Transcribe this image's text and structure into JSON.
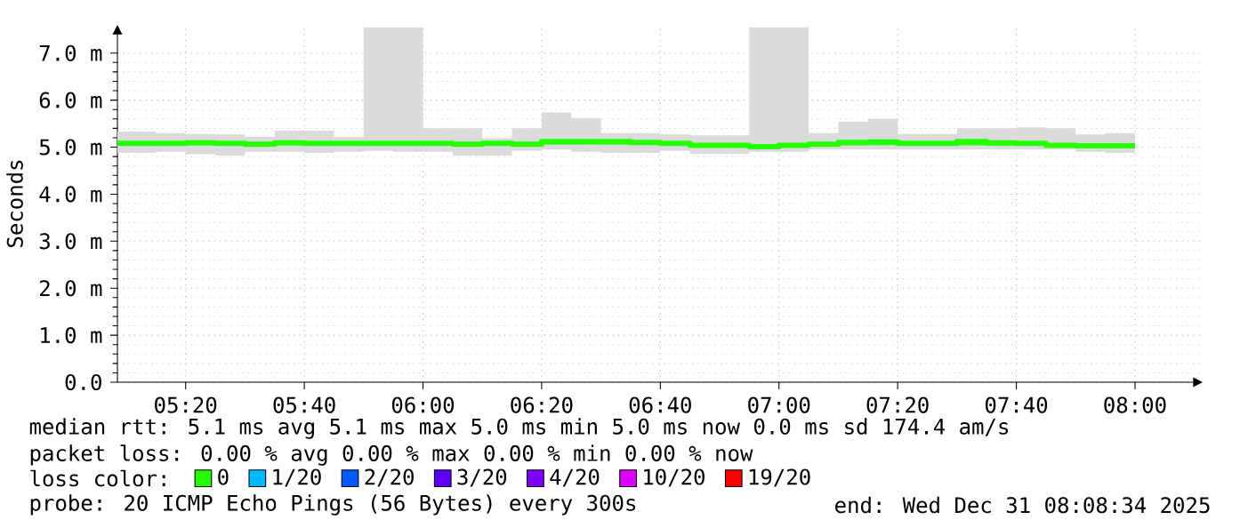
{
  "chart_data": {
    "type": "step",
    "ylabel": "Seconds",
    "x": [
      5.1417,
      5.25,
      5.3333,
      5.4167,
      5.5,
      5.5833,
      5.6667,
      5.75,
      5.8333,
      5.9167,
      6.0,
      6.0833,
      6.1667,
      6.25,
      6.3333,
      6.4167,
      6.5,
      6.5833,
      6.6667,
      6.75,
      6.8333,
      6.9167,
      7.0,
      7.0833,
      7.1667,
      7.25,
      7.3333,
      7.4167,
      7.5,
      7.5833,
      7.6667,
      7.75,
      7.8333,
      7.9167,
      8.0
    ],
    "series": [
      {
        "name": "0",
        "color": "#26ff00",
        "values": [
          5.08,
          5.08,
          5.09,
          5.08,
          5.06,
          5.09,
          5.08,
          5.08,
          5.08,
          5.08,
          5.08,
          5.06,
          5.08,
          5.06,
          5.12,
          5.12,
          5.12,
          5.1,
          5.08,
          5.04,
          5.04,
          5.01,
          5.04,
          5.06,
          5.1,
          5.11,
          5.08,
          5.08,
          5.12,
          5.09,
          5.08,
          5.04,
          5.03,
          5.03,
          5.03
        ],
        "upper": [
          5.33,
          5.3,
          5.28,
          5.27,
          5.22,
          5.35,
          5.35,
          5.22,
          7.55,
          7.55,
          5.4,
          5.4,
          5.19,
          5.4,
          5.74,
          5.62,
          5.3,
          5.3,
          5.27,
          5.25,
          5.25,
          7.55,
          7.55,
          5.3,
          5.54,
          5.6,
          5.28,
          5.28,
          5.4,
          5.4,
          5.42,
          5.4,
          5.27,
          5.3,
          5.3
        ],
        "lower": [
          4.88,
          4.9,
          4.85,
          4.82,
          4.9,
          4.9,
          4.88,
          4.9,
          4.92,
          4.9,
          4.9,
          4.82,
          4.82,
          4.92,
          4.95,
          4.9,
          4.88,
          4.88,
          4.92,
          4.86,
          4.86,
          4.9,
          4.9,
          4.95,
          4.95,
          4.95,
          4.95,
          4.95,
          4.95,
          4.95,
          4.95,
          4.95,
          4.9,
          4.88,
          4.88
        ]
      },
      {
        "name": "1/20",
        "color": "#00b8ff",
        "values": [
          null,
          null,
          null,
          null,
          null,
          null,
          null,
          null,
          null,
          null,
          null,
          null,
          null,
          null,
          null,
          null,
          null,
          null,
          null,
          null,
          null,
          null,
          null,
          null,
          null,
          null,
          null,
          null,
          null,
          null,
          null,
          null,
          null,
          null,
          null
        ]
      },
      {
        "name": "2/20",
        "color": "#0059ff",
        "values": [
          null,
          null,
          null,
          null,
          null,
          null,
          null,
          null,
          null,
          null,
          null,
          null,
          null,
          null,
          null,
          null,
          null,
          null,
          null,
          null,
          null,
          null,
          null,
          null,
          null,
          null,
          null,
          null,
          null,
          null,
          null,
          null,
          null,
          null,
          null
        ]
      },
      {
        "name": "3/20",
        "color": "#5e00ff",
        "values": [
          null,
          null,
          null,
          null,
          null,
          null,
          null,
          null,
          null,
          null,
          null,
          null,
          null,
          null,
          null,
          null,
          null,
          null,
          null,
          null,
          null,
          null,
          null,
          null,
          null,
          null,
          null,
          null,
          null,
          null,
          null,
          null,
          null,
          null,
          null
        ]
      },
      {
        "name": "4/20",
        "color": "#7e00ff",
        "values": [
          null,
          null,
          null,
          null,
          null,
          null,
          null,
          null,
          null,
          null,
          null,
          null,
          null,
          null,
          null,
          null,
          null,
          null,
          null,
          null,
          null,
          null,
          null,
          null,
          null,
          null,
          null,
          null,
          null,
          null,
          null,
          null,
          null,
          null,
          null
        ]
      },
      {
        "name": "10/20",
        "color": "#dd00ff",
        "values": [
          null,
          null,
          null,
          null,
          null,
          null,
          null,
          null,
          null,
          null,
          null,
          null,
          null,
          null,
          null,
          null,
          null,
          null,
          null,
          null,
          null,
          null,
          null,
          null,
          null,
          null,
          null,
          null,
          null,
          null,
          null,
          null,
          null,
          null,
          null
        ]
      },
      {
        "name": "19/20",
        "color": "#ff0000",
        "values": [
          null,
          null,
          null,
          null,
          null,
          null,
          null,
          null,
          null,
          null,
          null,
          null,
          null,
          null,
          null,
          null,
          null,
          null,
          null,
          null,
          null,
          null,
          null,
          null,
          null,
          null,
          null,
          null,
          null,
          null,
          null,
          null,
          null,
          null,
          null
        ]
      }
    ],
    "legend": "bottom",
    "legend_title": "loss color:",
    "grid": true,
    "xlim": [
      5.1417,
      8.19
    ],
    "ylim": [
      0,
      7.6
    ],
    "xticks": [
      {
        "value": 5.3333,
        "label": "05:20"
      },
      {
        "value": 5.6667,
        "label": "05:40"
      },
      {
        "value": 6.0,
        "label": "06:00"
      },
      {
        "value": 6.3333,
        "label": "06:20"
      },
      {
        "value": 6.6667,
        "label": "06:40"
      },
      {
        "value": 7.0,
        "label": "07:00"
      },
      {
        "value": 7.3333,
        "label": "07:20"
      },
      {
        "value": 7.6667,
        "label": "07:40"
      },
      {
        "value": 8.0,
        "label": "08:00"
      }
    ],
    "yticks": [
      {
        "value": 0,
        "label": "0.0"
      },
      {
        "value": 1,
        "label": "1.0 m"
      },
      {
        "value": 2,
        "label": "2.0 m"
      },
      {
        "value": 3,
        "label": "3.0 m"
      },
      {
        "value": 4,
        "label": "4.0 m"
      },
      {
        "value": 5,
        "label": "5.0 m"
      },
      {
        "value": 6,
        "label": "6.0 m"
      },
      {
        "value": 7,
        "label": "7.0 m"
      }
    ],
    "annotations": [
      "median rtt: 5.1 ms avg 5.1 ms max 5.0 ms min 5.0 ms now 0.0 ms sd 174.4 am/s",
      "packet loss: 0.00 % avg 0.00 % max 0.00 % min 0.00 % now",
      "probe: 20 ICMP Echo Pings (56 Bytes) every 300s",
      "end: Wed Dec 31 08:08:34 2025"
    ]
  }
}
